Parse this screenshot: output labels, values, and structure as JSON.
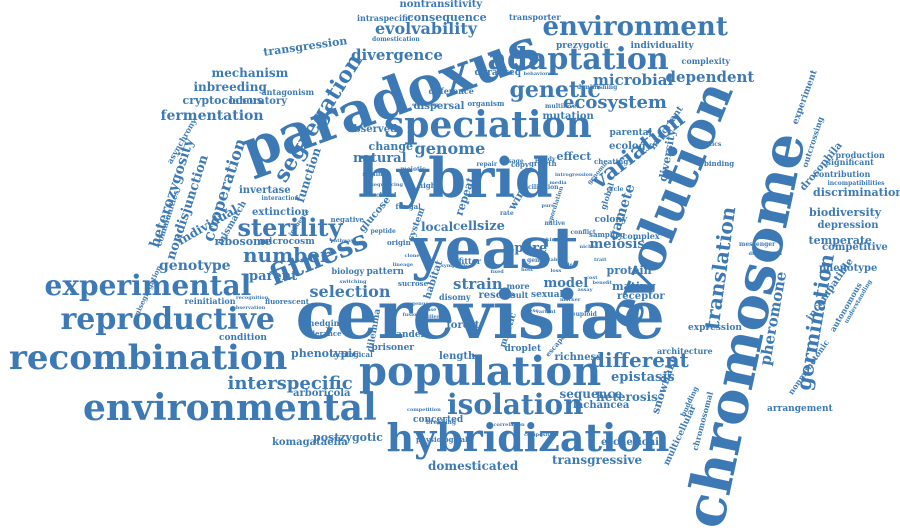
{
  "colors": {
    "primary": "#3d7ab5",
    "background": "#ffffff"
  },
  "words": [
    "cerevisiae",
    "yeast",
    "hybrid",
    "paradoxus",
    "chromosome",
    "evolution",
    "population",
    "hybridization",
    "environmental",
    "recombination",
    "speciation",
    "reproductive",
    "experimental",
    "fitness",
    "adaptation",
    "environment",
    "isolation",
    "sterility",
    "segregation",
    "genetic",
    "variation",
    "interspecific",
    "translation",
    "germination",
    "different",
    "number",
    "ecosystem",
    "genome",
    "selection",
    "evolvability",
    "divergence",
    "cooperation",
    "pheromone",
    "microbial",
    "dependent",
    "heterozygosity",
    "nondisjunction",
    "fermentation",
    "mechanism",
    "inbreeding",
    "cryptococcus",
    "transgression",
    "laboratory",
    "genotype",
    "parent",
    "strain",
    "spore",
    "model",
    "gamete",
    "meiosis",
    "protein",
    "mating",
    "epistasis",
    "heterosis",
    "sequence",
    "lachancea",
    "snowflake",
    "escherichia",
    "domesticated",
    "transgressive",
    "postzygotic",
    "komagataella",
    "arboricola",
    "phenotypic",
    "forest",
    "length",
    "richness",
    "concerted",
    "biodiversity",
    "discrimination",
    "temperate",
    "competitive",
    "phenotype",
    "incompatible",
    "autonomous",
    "drosophila",
    "depression",
    "significant",
    "nonmonotonic",
    "arrangement",
    "expression",
    "architecture",
    "consequence",
    "nontransitivity",
    "intraspecific",
    "transporter",
    "prezygotic",
    "individuality",
    "complexity",
    "function",
    "invertase",
    "mismatch",
    "extinction",
    "individual",
    "ribosome",
    "microcosm",
    "condition",
    "reinitiation",
    "ecological",
    "physiological",
    "multicellular",
    "chromosomal",
    "natural",
    "change",
    "observed",
    "local",
    "cell",
    "size",
    "glucose",
    "sucrose",
    "habitat",
    "rescue",
    "result",
    "sexual",
    "receptor",
    "wine",
    "repeat",
    "colony",
    "ecology",
    "parental",
    "important",
    "diversity",
    "mutation",
    "effect",
    "dispersal",
    "ddradseq",
    "difference",
    "organism",
    "asynchrony",
    "communities",
    "antagonism",
    "misegregation",
    "hedging",
    "tolerance",
    "prisoner",
    "dilemma",
    "tandem",
    "droplet",
    "mitotic",
    "escape",
    "experiment",
    "outcrossing",
    "contribution",
    "production",
    "incompatibilities",
    "understanding",
    "cheating",
    "sampling",
    "messenger",
    "distribution",
    "complex",
    "global",
    "binding",
    "domestication",
    "behavioral",
    "diminishing",
    "multilevel",
    "signaling",
    "system",
    "negative",
    "biology",
    "pattern",
    "disomy",
    "more",
    "fluorescent",
    "recognition",
    "observation",
    "interaction",
    "influence",
    "facilitation",
    "sporulation",
    "conflict",
    "fitter",
    "breaking",
    "competition",
    "correlation",
    "composition",
    "aneuploid",
    "genomic",
    "meiotic",
    "sequencing",
    "ploidy",
    "budding",
    "genetics",
    "cycle",
    "copy",
    "strains",
    "native",
    "origin",
    "peptide",
    "fungal",
    "growth",
    "usage",
    "repair",
    "high",
    "clonal",
    "stable",
    "rate",
    "fixed",
    "loss",
    "allele",
    "niche",
    "trait",
    "gene",
    "host",
    "pathway",
    "switching",
    "sympatric",
    "introgression",
    "cost",
    "benefit",
    "assay",
    "stress",
    "marker",
    "clone",
    "lineage",
    "variant",
    "killer",
    "phase",
    "pure",
    "media",
    "fusion",
    "genus",
    "kinase"
  ]
}
